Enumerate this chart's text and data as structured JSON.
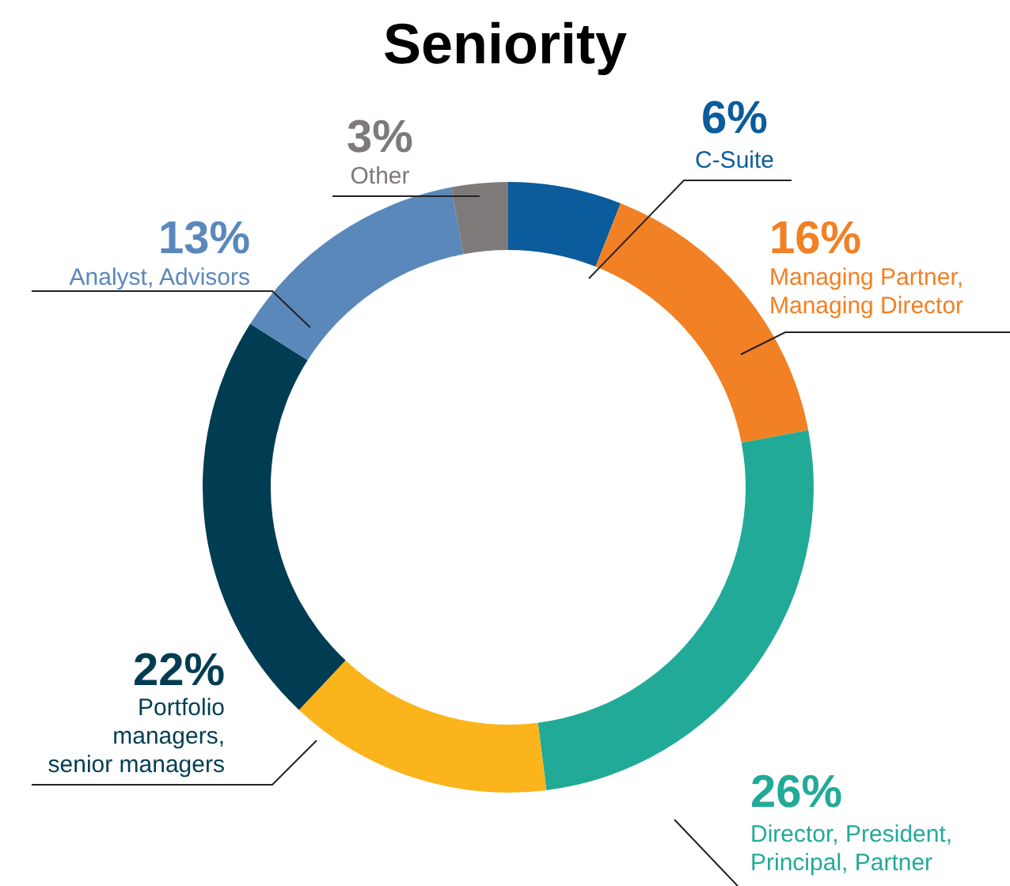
{
  "chart_data": {
    "type": "donut",
    "title": "Seniority",
    "categories": [
      "C-Suite",
      "Managing Partner,\nManaging Director",
      "Director, President,\nPrincipal, Partner",
      null,
      "Portfolio\nmanagers,\nsenior managers",
      "Analyst, Advisors",
      "Other"
    ],
    "values": [
      6,
      16,
      26,
      14,
      22,
      13,
      3
    ],
    "colors": [
      "#0a5c9c",
      "#f28024",
      "#22aa98",
      "#fbb41c",
      "#003d52",
      "#5b88bb",
      "#7f7a7a"
    ],
    "value_labels": [
      "6%",
      "16%",
      "26%",
      null,
      "22%",
      "13%",
      "3%"
    ]
  }
}
